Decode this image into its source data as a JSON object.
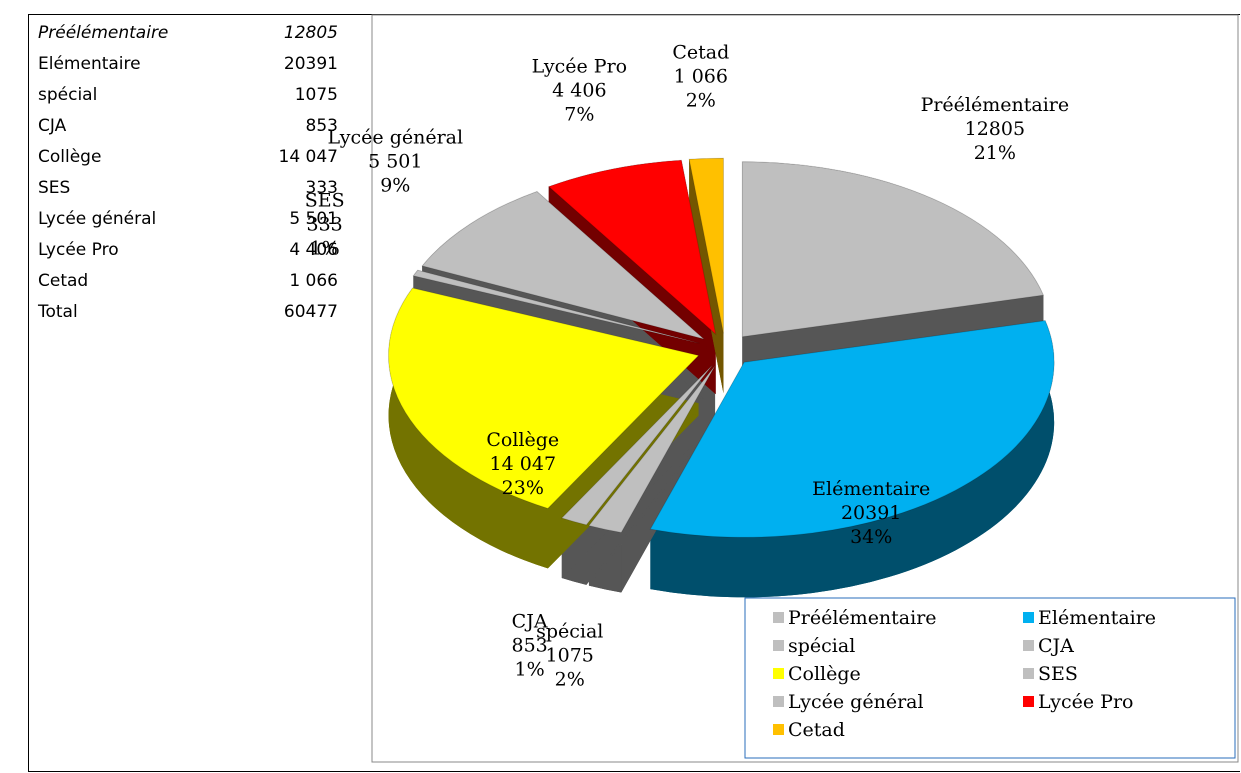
{
  "table": {
    "rows": [
      [
        "Préélémentaire",
        "12805"
      ],
      [
        "Elémentaire",
        "20391"
      ],
      [
        "spécial",
        "1075"
      ],
      [
        "CJA",
        "853"
      ],
      [
        "Collège",
        "14 047"
      ],
      [
        "SES",
        "333"
      ],
      [
        "Lycée général",
        "5 501"
      ],
      [
        "Lycée Pro",
        "4 406"
      ],
      [
        "Cetad",
        "1 066"
      ],
      [
        "Total",
        "60477"
      ]
    ]
  },
  "chart_data": {
    "type": "pie",
    "categories": [
      "Préélémentaire",
      "Elémentaire",
      "spécial",
      "CJA",
      "Collège",
      "SES",
      "Lycée général",
      "Lycée Pro",
      "Cetad"
    ],
    "values": [
      12805,
      20391,
      1075,
      853,
      14047,
      333,
      5501,
      4406,
      1066
    ],
    "value_labels": [
      "12805",
      "20391",
      "1075",
      "853",
      "14 047",
      "333",
      "5 501",
      "4 406",
      "1 066"
    ],
    "percent_labels": [
      "21%",
      "34%",
      "2%",
      "1%",
      "23%",
      "1%",
      "9%",
      "7%",
      "2%"
    ],
    "colors": [
      "#bfbfbf",
      "#00b0f0",
      "#bfbfbf",
      "#bfbfbf",
      "#ffff00",
      "#bfbfbf",
      "#bfbfbf",
      "#ff0000",
      "#ffc000"
    ],
    "legend": "bottom-right"
  }
}
